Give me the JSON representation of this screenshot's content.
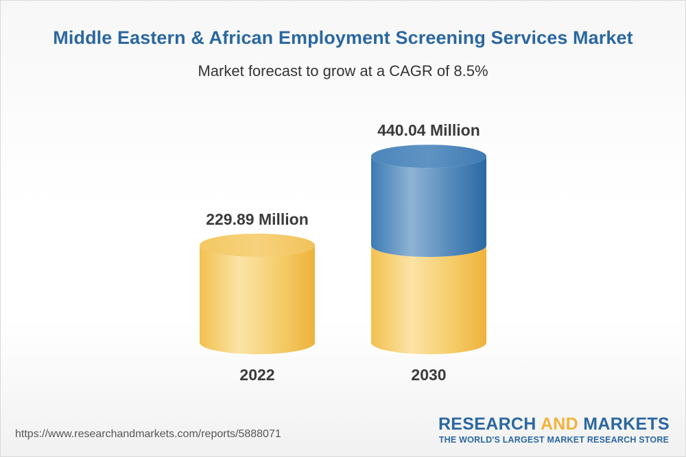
{
  "header": {
    "title": "Middle Eastern & African Employment Screening Services Market",
    "subtitle": "Market forecast to grow at a CAGR of 8.5%"
  },
  "chart_data": {
    "type": "bar",
    "categories": [
      "2022",
      "2030"
    ],
    "values": [
      229.89,
      440.04
    ],
    "value_labels": [
      "229.89 Million",
      "440.04 Million"
    ],
    "unit": "Million",
    "title": "Middle Eastern & African Employment Screening Services Market",
    "subtitle": "Market forecast to grow at a CAGR of 8.5%",
    "cagr": "8.5%",
    "colors": {
      "base": "#f3c35a",
      "growth": "#3f7fb5"
    }
  },
  "footer": {
    "url": "https://www.researchandmarkets.com/reports/5888071",
    "brand_part1": "RESEARCH ",
    "brand_part2": "AND",
    "brand_part3": " MARKETS",
    "tagline": "THE WORLD'S LARGEST MARKET RESEARCH STORE"
  }
}
